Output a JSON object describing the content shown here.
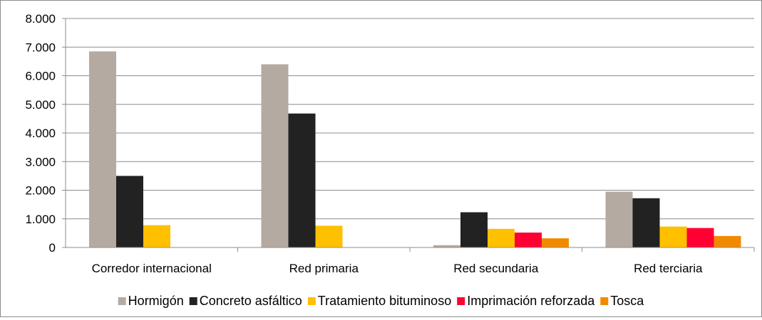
{
  "chart_data": {
    "type": "bar",
    "title": "",
    "xlabel": "",
    "ylabel": "",
    "ylim": [
      0,
      8000
    ],
    "yticks": [
      0,
      1000,
      2000,
      3000,
      4000,
      5000,
      6000,
      7000,
      8000
    ],
    "ytick_labels": [
      "0",
      "1.000",
      "2.000",
      "3.000",
      "4.000",
      "5.000",
      "6.000",
      "7.000",
      "8.000"
    ],
    "grid": true,
    "legend_position": "bottom",
    "categories": [
      "Corredor internacional",
      "Red primaria",
      "Red secundaria",
      "Red terciaria"
    ],
    "series": [
      {
        "name": "Hormigón",
        "color": "#b5aaa1",
        "values": [
          6850,
          6400,
          80,
          1950
        ]
      },
      {
        "name": "Concreto asfáltico",
        "color": "#222222",
        "values": [
          2500,
          4680,
          1230,
          1720
        ]
      },
      {
        "name": "Tratamiento bituminoso",
        "color": "#ffc000",
        "values": [
          780,
          760,
          650,
          730
        ]
      },
      {
        "name": "Imprimación reforzada",
        "color": "#ff0033",
        "values": [
          0,
          0,
          520,
          680
        ]
      },
      {
        "name": "Tosca",
        "color": "#f28a00",
        "values": [
          0,
          0,
          320,
          400
        ]
      }
    ]
  }
}
